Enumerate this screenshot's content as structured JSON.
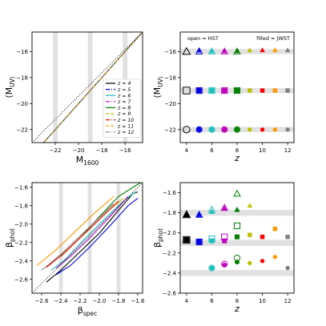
{
  "figure": {
    "background": "#ffffff",
    "band_color": "#e1e1e1"
  },
  "legend_labels": [
    "z = 4",
    "z = 5",
    "z = 6",
    "z = 7",
    "z = 8",
    "z = 9",
    "z = 10",
    "z = 11",
    "z = 12"
  ],
  "redshift_colors": {
    "4": "#000000",
    "5": "#0000e6",
    "6": "#1fbfbf",
    "7": "#bf00bf",
    "8": "#008000",
    "9": "#bfbf00",
    "10": "#ff0000",
    "11": "#ff9900",
    "12": "#808080"
  },
  "chart_data": [
    {
      "id": "top-left",
      "type": "line",
      "xlabel": "M_1600",
      "ylabel": "⟨M_UV⟩",
      "xlim": [
        -24,
        -14.5
      ],
      "ylim": [
        -23,
        -14.5
      ],
      "xticks": [
        -22,
        -20,
        -18,
        -16
      ],
      "xtick_labels": [
        "−22",
        "−20",
        "−18",
        "−16"
      ],
      "yticks": [
        -22,
        -20,
        -18,
        -16
      ],
      "ytick_labels": [
        "−22",
        "−20",
        "−18",
        "−16"
      ],
      "vertical_bands": [
        [
          -22.2,
          -21.8
        ],
        [
          -19.2,
          -18.8
        ],
        [
          -16.2,
          -15.8
        ]
      ],
      "reference_line": {
        "style": "dotted",
        "from": [
          -24,
          -23
        ],
        "to": [
          -14.5,
          -14.5
        ]
      },
      "legend_position": "lower-right",
      "series": [
        {
          "name": "z = 4",
          "z": 4,
          "dash": "solid",
          "x": [
            -24,
            -14.5
          ],
          "y": [
            -24,
            -14.5
          ]
        },
        {
          "name": "z = 5",
          "z": 5,
          "dash": "dashdot",
          "x": [
            -24,
            -14.5
          ],
          "y": [
            -24,
            -14.5
          ]
        },
        {
          "name": "z = 6",
          "z": 6,
          "dash": "solid",
          "x": [
            -24,
            -14.5
          ],
          "y": [
            -24,
            -14.5
          ]
        },
        {
          "name": "z = 7",
          "z": 7,
          "dash": "dashdot",
          "x": [
            -24,
            -14.5
          ],
          "y": [
            -24,
            -14.5
          ]
        },
        {
          "name": "z = 8",
          "z": 8,
          "dash": "solid",
          "x": [
            -24,
            -14.5
          ],
          "y": [
            -24,
            -14.5
          ]
        },
        {
          "name": "z = 9",
          "z": 9,
          "dash": "dashed",
          "x": [
            -24,
            -14.5
          ],
          "y": [
            -24,
            -14.5
          ]
        },
        {
          "name": "z = 10",
          "z": 10,
          "dash": "dashdot",
          "x": [
            -24,
            -14.5
          ],
          "y": [
            -24,
            -14.5
          ]
        },
        {
          "name": "z = 11",
          "z": 11,
          "dash": "dashed",
          "x": [
            -24,
            -14.5
          ],
          "y": [
            -24,
            -14.5
          ]
        },
        {
          "name": "z = 12",
          "z": 12,
          "dash": "dashdot",
          "x": [
            -24,
            -14.5
          ],
          "y": [
            -24,
            -14.5
          ]
        }
      ]
    },
    {
      "id": "top-right",
      "type": "scatter",
      "xlabel": "z",
      "ylabel": "⟨M_UV⟩",
      "xlim": [
        3.5,
        12.5
      ],
      "ylim": [
        -23,
        -14.5
      ],
      "xticks": [
        4,
        6,
        8,
        10,
        12
      ],
      "xtick_labels": [
        "4",
        "6",
        "8",
        "10",
        "12"
      ],
      "yticks": [
        -22,
        -20,
        -18,
        -16
      ],
      "ytick_labels": [
        "−22",
        "−20",
        "−18",
        "−16"
      ],
      "annotations": [
        "open = HST",
        "filled = JWST"
      ],
      "horizontal_bands": [
        [
          -16.2,
          -15.8
        ],
        [
          -19.2,
          -18.8
        ],
        [
          -22.2,
          -21.8
        ]
      ],
      "series": [
        {
          "marker": "triangle",
          "open": [
            [
              4,
              -16
            ],
            [
              5,
              -16
            ],
            [
              6,
              -16
            ],
            [
              7,
              -16
            ],
            [
              8,
              -16
            ]
          ],
          "filled": [
            [
              5,
              -15.9
            ],
            [
              6,
              -15.95
            ],
            [
              7,
              -15.95
            ],
            [
              8,
              -15.95
            ],
            [
              9,
              -15.9
            ],
            [
              10,
              -15.9
            ],
            [
              11,
              -15.9
            ],
            [
              12,
              -15.9
            ]
          ]
        },
        {
          "marker": "square",
          "open": [
            [
              4,
              -19
            ],
            [
              5,
              -19
            ],
            [
              6,
              -19
            ],
            [
              7,
              -19
            ],
            [
              8,
              -19
            ]
          ],
          "filled": [
            [
              5,
              -19
            ],
            [
              6,
              -19
            ],
            [
              7,
              -19
            ],
            [
              8,
              -19
            ],
            [
              9,
              -19
            ],
            [
              10,
              -19
            ],
            [
              11,
              -19
            ],
            [
              12,
              -19
            ]
          ]
        },
        {
          "marker": "circle",
          "open": [
            [
              4,
              -22
            ],
            [
              5,
              -22
            ],
            [
              6,
              -22
            ],
            [
              7,
              -22
            ],
            [
              8,
              -22
            ]
          ],
          "filled": [
            [
              5,
              -22
            ],
            [
              6,
              -22
            ],
            [
              7,
              -22
            ],
            [
              8,
              -22
            ],
            [
              9,
              -22
            ],
            [
              10,
              -22
            ],
            [
              11,
              -22
            ],
            [
              12,
              -22
            ]
          ]
        }
      ]
    },
    {
      "id": "bottom-left",
      "type": "line",
      "xlabel": "β_spec",
      "ylabel": "β_phot",
      "xlim": [
        -2.7,
        -1.55
      ],
      "ylim": [
        -2.75,
        -1.55
      ],
      "xticks": [
        -2.6,
        -2.4,
        -2.2,
        -2.0,
        -1.8,
        -1.6
      ],
      "xtick_labels": [
        "−2.6",
        "−2.4",
        "−2.2",
        "−2.0",
        "−1.8",
        "−1.6"
      ],
      "yticks": [
        -2.6,
        -2.4,
        -2.2,
        -2.0,
        -1.8,
        -1.6
      ],
      "ytick_labels": [
        "−2.6",
        "−2.4",
        "−2.2",
        "−2.0",
        "−1.8",
        "−1.6"
      ],
      "vertical_bands": [
        [
          -2.42,
          -2.38
        ],
        [
          -2.12,
          -2.08
        ],
        [
          -1.82,
          -1.78
        ]
      ],
      "reference_line": {
        "style": "dotted",
        "from": [
          -2.7,
          -2.75
        ],
        "to": [
          -1.55,
          -1.55
        ]
      },
      "series": [
        {
          "z": 4,
          "x": [
            -2.55,
            -2.4,
            -2.2,
            -2.0,
            -1.8,
            -1.65,
            -1.6
          ],
          "y": [
            -2.63,
            -2.5,
            -2.3,
            -2.1,
            -1.85,
            -1.67,
            -1.65
          ]
        },
        {
          "z": 5,
          "x": [
            -2.45,
            -2.3,
            -2.1,
            -1.9,
            -1.7,
            -1.6
          ],
          "y": [
            -2.55,
            -2.45,
            -2.25,
            -2.03,
            -1.8,
            -1.72
          ]
        },
        {
          "z": 6,
          "x": [
            -2.5,
            -2.35,
            -2.15,
            -1.95,
            -1.75,
            -1.62
          ],
          "y": [
            -2.5,
            -2.38,
            -2.16,
            -1.95,
            -1.75,
            -1.65
          ]
        },
        {
          "z": 7,
          "x": [
            -2.45,
            -2.3,
            -2.1,
            -1.9,
            -1.7
          ],
          "y": [
            -2.48,
            -2.35,
            -2.15,
            -1.93,
            -1.7
          ]
        },
        {
          "z": 8,
          "x": [
            -2.4,
            -2.2,
            -2.0,
            -1.8,
            -1.65,
            -1.57
          ],
          "y": [
            -2.35,
            -2.15,
            -1.92,
            -1.7,
            -1.6,
            -1.55
          ]
        },
        {
          "z": 9,
          "x": [
            -2.5,
            -2.3,
            -2.1,
            -1.9,
            -1.75
          ],
          "y": [
            -2.42,
            -2.25,
            -2.05,
            -1.85,
            -1.72
          ]
        },
        {
          "z": 10,
          "x": [
            -2.55,
            -2.35,
            -2.15,
            -1.95,
            -1.8
          ],
          "y": [
            -2.47,
            -2.3,
            -2.1,
            -1.9,
            -1.75
          ]
        },
        {
          "z": 11,
          "x": [
            -2.65,
            -2.45,
            -2.25,
            -2.05,
            -1.85
          ],
          "y": [
            -2.45,
            -2.28,
            -2.08,
            -1.88,
            -1.7
          ]
        },
        {
          "z": 12,
          "x": [
            -2.6,
            -2.4,
            -2.2,
            -2.0,
            -1.85
          ],
          "y": [
            -2.5,
            -2.33,
            -2.13,
            -1.93,
            -1.78
          ]
        }
      ]
    },
    {
      "id": "bottom-right",
      "type": "scatter",
      "xlabel": "z",
      "ylabel": "β_phot",
      "xlim": [
        3.5,
        12.5
      ],
      "ylim": [
        -2.6,
        -1.5
      ],
      "xticks": [
        4,
        6,
        8,
        10,
        12
      ],
      "xtick_labels": [
        "4",
        "6",
        "8",
        "10",
        "12"
      ],
      "yticks": [
        -2.6,
        -2.4,
        -2.2,
        -2.0,
        -1.8,
        -1.6
      ],
      "ytick_labels": [
        "−2.6",
        "−2.4",
        "−2.2",
        "−2.0",
        "−1.8",
        "−1.6"
      ],
      "horizontal_bands": [
        [
          -1.83,
          -1.77
        ],
        [
          -2.13,
          -2.07
        ],
        [
          -2.43,
          -2.37
        ]
      ],
      "series": [
        {
          "marker": "triangle",
          "open": [
            [
              4,
              -1.82
            ],
            [
              5,
              -1.82
            ],
            [
              6,
              -1.77
            ],
            [
              7,
              -1.75
            ],
            [
              8,
              -1.61
            ]
          ],
          "filled": [
            [
              4,
              -1.82
            ],
            [
              5,
              -1.82
            ],
            [
              6,
              -1.79
            ],
            [
              7,
              -1.76
            ],
            [
              8,
              -1.77
            ],
            [
              9,
              -1.73
            ]
          ]
        },
        {
          "marker": "square",
          "open": [
            [
              4,
              -2.07
            ],
            [
              5,
              -2.09
            ],
            [
              6,
              -2.06
            ],
            [
              7,
              -2.04
            ],
            [
              8,
              -1.93
            ]
          ],
          "filled": [
            [
              4,
              -2.07
            ],
            [
              5,
              -2.09
            ],
            [
              6,
              -2.08
            ],
            [
              7,
              -2.08
            ],
            [
              8,
              -2.04
            ],
            [
              9,
              -2.02
            ],
            [
              10,
              -2.04
            ],
            [
              11,
              -1.96
            ],
            [
              12,
              -2.04
            ]
          ]
        },
        {
          "marker": "circle",
          "open": [
            [
              6,
              -2.35
            ],
            [
              7,
              -2.31
            ],
            [
              8,
              -2.25
            ]
          ],
          "filled": [
            [
              6,
              -2.35
            ],
            [
              7,
              -2.32
            ],
            [
              8,
              -2.29
            ],
            [
              9,
              -2.3
            ],
            [
              10,
              -2.28
            ],
            [
              11,
              -2.24
            ],
            [
              12,
              -2.35
            ]
          ]
        }
      ]
    }
  ]
}
